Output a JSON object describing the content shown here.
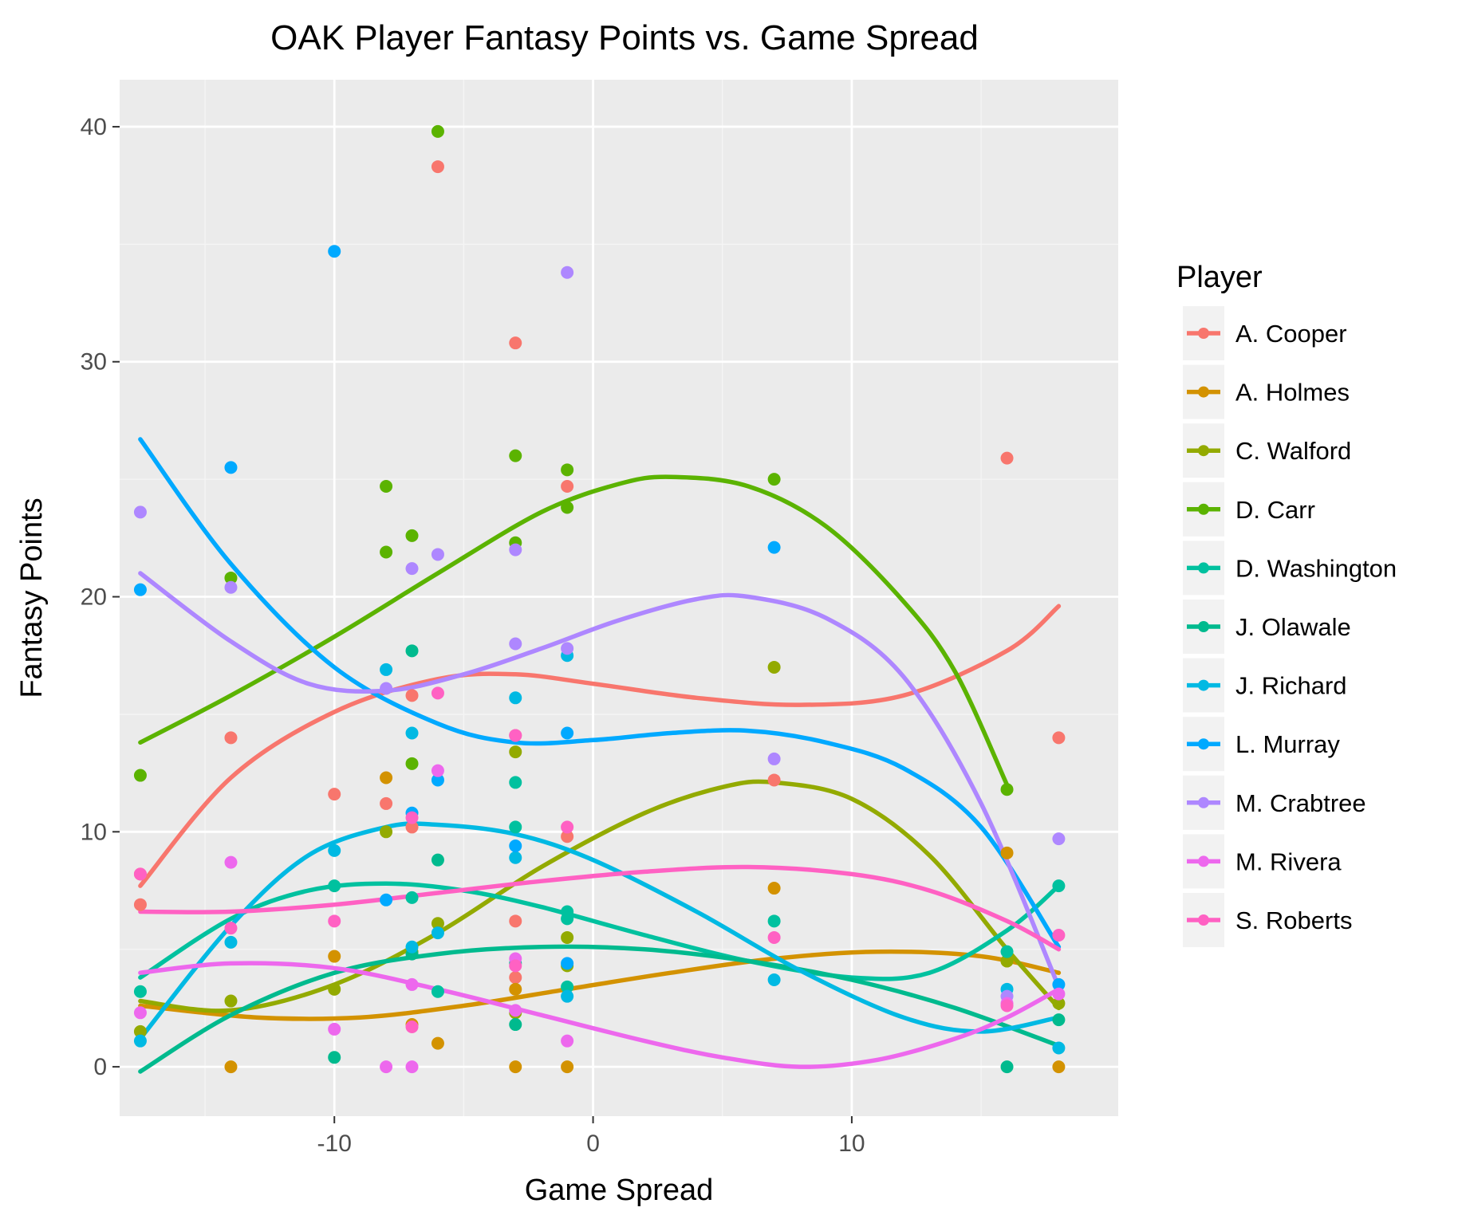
{
  "chart_data": {
    "type": "scatter",
    "title": "OAK Player Fantasy Points vs. Game Spread",
    "xlabel": "Game Spread",
    "ylabel": "Fantasy Points",
    "xlim": [
      -18.3,
      20.3
    ],
    "ylim": [
      -2.1,
      42.0
    ],
    "x_ticks": [
      -10,
      0,
      10
    ],
    "x_tick_labels": [
      "-10",
      "0",
      "10"
    ],
    "y_ticks": [
      0,
      10,
      20,
      30,
      40
    ],
    "y_tick_labels": [
      "0",
      "10",
      "20",
      "30",
      "40"
    ],
    "grid": true,
    "legend": {
      "title": "Player",
      "position": "right"
    },
    "smoothed_trend": true,
    "series": [
      {
        "name": "A. Cooper",
        "color": "#F8766D",
        "points": [
          [
            -17.5,
            8.2
          ],
          [
            -17.5,
            6.9
          ],
          [
            -14,
            14
          ],
          [
            -10,
            11.6
          ],
          [
            -8,
            11.2
          ],
          [
            -7,
            10.2
          ],
          [
            -7,
            15.8
          ],
          [
            -6,
            38.3
          ],
          [
            -3,
            30.8
          ],
          [
            -3,
            14.1
          ],
          [
            -3,
            6.2
          ],
          [
            -3,
            3.8
          ],
          [
            -1,
            24.7
          ],
          [
            -1,
            9.8
          ],
          [
            7,
            12.2
          ],
          [
            16,
            25.9
          ],
          [
            18,
            14
          ]
        ],
        "trend": [
          [
            -17.5,
            7.7
          ],
          [
            -14,
            12.3
          ],
          [
            -10,
            15.1
          ],
          [
            -6,
            16.5
          ],
          [
            -3,
            16.7
          ],
          [
            0,
            16.3
          ],
          [
            4,
            15.7
          ],
          [
            8,
            15.4
          ],
          [
            12,
            15.8
          ],
          [
            16,
            17.7
          ],
          [
            18,
            19.6
          ]
        ]
      },
      {
        "name": "A. Holmes",
        "color": "#D39200",
        "points": [
          [
            -14,
            0
          ],
          [
            -10,
            4.7
          ],
          [
            -8,
            12.3
          ],
          [
            -7,
            1.8
          ],
          [
            -6,
            1
          ],
          [
            -3,
            3.3
          ],
          [
            -3,
            0
          ],
          [
            -1,
            0
          ],
          [
            7,
            7.6
          ],
          [
            16,
            9.1
          ],
          [
            16,
            4.5
          ],
          [
            18,
            0
          ]
        ],
        "trend": [
          [
            -17.5,
            2.6
          ],
          [
            -13,
            2.1
          ],
          [
            -9,
            2.1
          ],
          [
            -5,
            2.6
          ],
          [
            -1,
            3.3
          ],
          [
            3,
            4.0
          ],
          [
            7,
            4.6
          ],
          [
            11,
            4.9
          ],
          [
            15,
            4.7
          ],
          [
            18,
            4.0
          ]
        ]
      },
      {
        "name": "C. Walford",
        "color": "#93AA00",
        "points": [
          [
            -17.5,
            1.5
          ],
          [
            -14,
            2.8
          ],
          [
            -10,
            3.3
          ],
          [
            -8,
            10
          ],
          [
            -7,
            4.9
          ],
          [
            -6,
            6.1
          ],
          [
            -3,
            13.4
          ],
          [
            -3,
            2.3
          ],
          [
            -1,
            5.5
          ],
          [
            -1,
            4.3
          ],
          [
            7,
            17
          ],
          [
            16,
            4.5
          ],
          [
            18,
            2.7
          ]
        ],
        "trend": [
          [
            -17.5,
            2.8
          ],
          [
            -14,
            2.4
          ],
          [
            -10,
            3.5
          ],
          [
            -6,
            5.7
          ],
          [
            -2,
            8.5
          ],
          [
            2,
            10.8
          ],
          [
            5,
            11.9
          ],
          [
            7,
            12.1
          ],
          [
            10,
            11.4
          ],
          [
            13,
            9.0
          ],
          [
            16,
            5.0
          ],
          [
            18,
            2.5
          ]
        ]
      },
      {
        "name": "D. Carr",
        "color": "#5BB300",
        "points": [
          [
            -17.5,
            12.4
          ],
          [
            -14,
            20.8
          ],
          [
            -8,
            24.7
          ],
          [
            -8,
            21.9
          ],
          [
            -7,
            22.6
          ],
          [
            -7,
            12.9
          ],
          [
            -6,
            39.8
          ],
          [
            -3,
            26
          ],
          [
            -3,
            22.3
          ],
          [
            -1,
            25.4
          ],
          [
            -1,
            23.8
          ],
          [
            7,
            25
          ],
          [
            16,
            11.8
          ]
        ],
        "trend": [
          [
            -17.5,
            13.8
          ],
          [
            -14,
            15.8
          ],
          [
            -10,
            18.3
          ],
          [
            -6,
            21.0
          ],
          [
            -2,
            23.6
          ],
          [
            1,
            24.8
          ],
          [
            3,
            25.1
          ],
          [
            6,
            24.7
          ],
          [
            9,
            23.0
          ],
          [
            12,
            19.8
          ],
          [
            14,
            16.8
          ],
          [
            16,
            12.0
          ]
        ]
      },
      {
        "name": "D. Washington",
        "color": "#00C19F",
        "points": [
          [
            -17.5,
            3.2
          ],
          [
            -10,
            7.7
          ],
          [
            -7,
            7.2
          ],
          [
            -6,
            3.2
          ],
          [
            -3,
            12.1
          ],
          [
            -3,
            10.2
          ],
          [
            -3,
            4.4
          ],
          [
            -1,
            6.6
          ],
          [
            -1,
            6.3
          ],
          [
            -1,
            3.4
          ],
          [
            7,
            6.2
          ],
          [
            16,
            4.9
          ],
          [
            18,
            7.7
          ]
        ],
        "trend": [
          [
            -17.5,
            3.8
          ],
          [
            -14,
            6.3
          ],
          [
            -11,
            7.5
          ],
          [
            -8,
            7.8
          ],
          [
            -5,
            7.5
          ],
          [
            -2,
            6.8
          ],
          [
            2,
            5.6
          ],
          [
            6,
            4.5
          ],
          [
            10,
            3.8
          ],
          [
            13,
            4.0
          ],
          [
            16,
            5.8
          ],
          [
            18,
            7.7
          ]
        ]
      },
      {
        "name": "J. Olawale",
        "color": "#00BA8E",
        "points": [
          [
            -10,
            0.4
          ],
          [
            -7,
            17.7
          ],
          [
            -7,
            4.8
          ],
          [
            -6,
            8.8
          ],
          [
            -3,
            1.8
          ],
          [
            16,
            0
          ],
          [
            18,
            2
          ]
        ],
        "trend": [
          [
            -17.5,
            -0.2
          ],
          [
            -14,
            2.2
          ],
          [
            -10,
            4.0
          ],
          [
            -6,
            4.8
          ],
          [
            -2,
            5.1
          ],
          [
            2,
            5.0
          ],
          [
            6,
            4.5
          ],
          [
            10,
            3.7
          ],
          [
            14,
            2.5
          ],
          [
            18,
            0.9
          ]
        ]
      },
      {
        "name": "J. Richard",
        "color": "#00B9E3",
        "points": [
          [
            -17.5,
            1.1
          ],
          [
            -14,
            5.3
          ],
          [
            -10,
            9.2
          ],
          [
            -8,
            16.9
          ],
          [
            -7,
            14.2
          ],
          [
            -7,
            5.1
          ],
          [
            -6,
            5.7
          ],
          [
            -3,
            15.7
          ],
          [
            -3,
            8.9
          ],
          [
            -1,
            17.5
          ],
          [
            -1,
            3
          ],
          [
            7,
            3.7
          ],
          [
            16,
            3.3
          ],
          [
            18,
            0.8
          ]
        ],
        "trend": [
          [
            -17.5,
            1.2
          ],
          [
            -14,
            6.0
          ],
          [
            -11,
            9.0
          ],
          [
            -8,
            10.2
          ],
          [
            -6,
            10.3
          ],
          [
            -3,
            9.9
          ],
          [
            0,
            8.8
          ],
          [
            4,
            6.6
          ],
          [
            8,
            4.1
          ],
          [
            12,
            2.1
          ],
          [
            15,
            1.5
          ],
          [
            18,
            2.1
          ]
        ]
      },
      {
        "name": "L. Murray",
        "color": "#00A9FF",
        "points": [
          [
            -17.5,
            20.3
          ],
          [
            -14,
            25.5
          ],
          [
            -10,
            34.7
          ],
          [
            -8,
            7.1
          ],
          [
            -7,
            10.8
          ],
          [
            -6,
            12.2
          ],
          [
            -3,
            9.4
          ],
          [
            -1,
            14.2
          ],
          [
            -1,
            4.4
          ],
          [
            7,
            22.1
          ],
          [
            18,
            3.5
          ]
        ],
        "trend": [
          [
            -17.5,
            26.7
          ],
          [
            -14,
            21.4
          ],
          [
            -10,
            17.0
          ],
          [
            -6,
            14.6
          ],
          [
            -3,
            13.8
          ],
          [
            0,
            13.9
          ],
          [
            3,
            14.2
          ],
          [
            6,
            14.3
          ],
          [
            9,
            13.8
          ],
          [
            12,
            12.7
          ],
          [
            15,
            10.2
          ],
          [
            18,
            5.1
          ]
        ]
      },
      {
        "name": "M. Crabtree",
        "color": "#AE87FF",
        "points": [
          [
            -17.5,
            23.6
          ],
          [
            -14,
            20.4
          ],
          [
            -8,
            16.1
          ],
          [
            -7,
            21.2
          ],
          [
            -6,
            21.8
          ],
          [
            -3,
            22
          ],
          [
            -3,
            18
          ],
          [
            -1,
            33.8
          ],
          [
            -1,
            17.8
          ],
          [
            7,
            13.1
          ],
          [
            16,
            3
          ],
          [
            18,
            9.7
          ]
        ],
        "trend": [
          [
            -17.5,
            21.0
          ],
          [
            -14,
            18.1
          ],
          [
            -11,
            16.3
          ],
          [
            -8,
            16.0
          ],
          [
            -5,
            16.7
          ],
          [
            -2,
            17.8
          ],
          [
            1,
            19.0
          ],
          [
            4,
            19.9
          ],
          [
            6,
            20.0
          ],
          [
            9,
            19.1
          ],
          [
            12,
            16.6
          ],
          [
            15,
            11.2
          ],
          [
            18,
            3.4
          ]
        ]
      },
      {
        "name": "M. Rivera",
        "color": "#ED68ED",
        "points": [
          [
            -17.5,
            2.3
          ],
          [
            -14,
            8.7
          ],
          [
            -10,
            1.6
          ],
          [
            -8,
            0
          ],
          [
            -7,
            3.5
          ],
          [
            -7,
            0
          ],
          [
            -6,
            12.6
          ],
          [
            -3,
            4.6
          ],
          [
            -3,
            2.4
          ],
          [
            -1,
            1.1
          ],
          [
            16,
            2.7
          ],
          [
            18,
            3.1
          ]
        ],
        "trend": [
          [
            -17.5,
            4.0
          ],
          [
            -14,
            4.4
          ],
          [
            -10,
            4.2
          ],
          [
            -6,
            3.3
          ],
          [
            -2,
            2.2
          ],
          [
            2,
            1.1
          ],
          [
            5,
            0.4
          ],
          [
            8,
            0.0
          ],
          [
            11,
            0.3
          ],
          [
            14,
            1.2
          ],
          [
            16,
            2.1
          ],
          [
            18,
            3.3
          ]
        ]
      },
      {
        "name": "S. Roberts",
        "color": "#FF61C3",
        "points": [
          [
            -17.5,
            8.2
          ],
          [
            -14,
            5.9
          ],
          [
            -10,
            6.2
          ],
          [
            -7,
            10.6
          ],
          [
            -7,
            1.7
          ],
          [
            -6,
            15.9
          ],
          [
            -3,
            14.1
          ],
          [
            -3,
            4.3
          ],
          [
            -1,
            10.2
          ],
          [
            7,
            5.5
          ],
          [
            16,
            2.6
          ],
          [
            18,
            5.6
          ]
        ],
        "trend": [
          [
            -17.5,
            6.6
          ],
          [
            -14,
            6.6
          ],
          [
            -10,
            6.9
          ],
          [
            -6,
            7.4
          ],
          [
            -2,
            7.9
          ],
          [
            2,
            8.3
          ],
          [
            6,
            8.5
          ],
          [
            10,
            8.2
          ],
          [
            13,
            7.5
          ],
          [
            16,
            6.2
          ],
          [
            18,
            5.0
          ]
        ]
      }
    ]
  }
}
